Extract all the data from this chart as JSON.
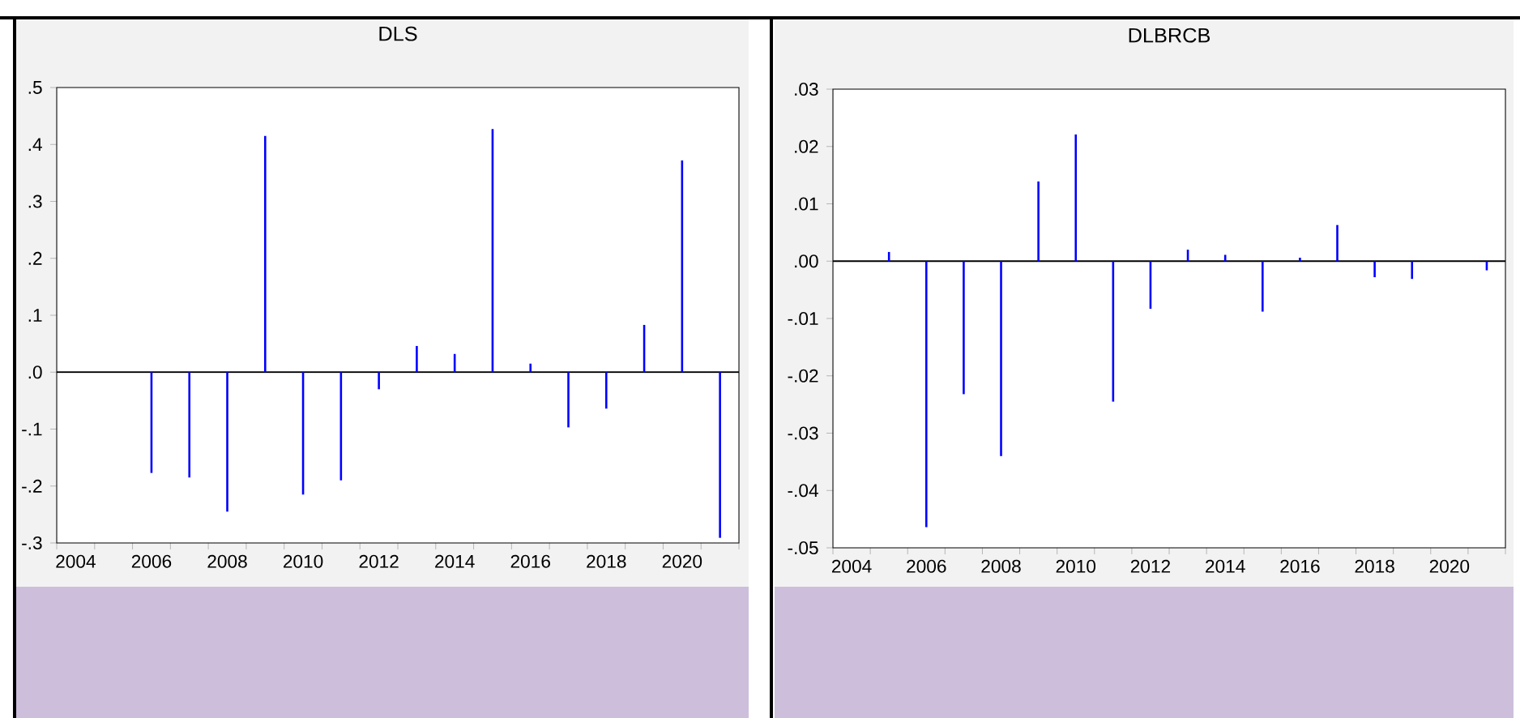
{
  "chart_data": [
    {
      "type": "bar",
      "title": "DLS",
      "color": "#0000ff",
      "categories": [
        "2004",
        null,
        "2006",
        null,
        "2008",
        null,
        "2010",
        null,
        "2012",
        null,
        "2014",
        null,
        "2016",
        null,
        "2018",
        null,
        "2020",
        null
      ],
      "values": [
        null,
        null,
        -0.177,
        -0.185,
        -0.245,
        0.415,
        -0.215,
        -0.19,
        -0.03,
        0.046,
        0.032,
        0.427,
        0.015,
        -0.097,
        -0.064,
        0.083,
        0.372,
        -0.291
      ],
      "ylim": [
        -0.3,
        0.5
      ],
      "yticks": [
        {
          "value": -0.3,
          "label": "-.3"
        },
        {
          "value": -0.2,
          "label": "-.2"
        },
        {
          "value": -0.1,
          "label": "-.1"
        },
        {
          "value": 0,
          "label": ".0"
        },
        {
          "value": 0.1,
          "label": ".1"
        },
        {
          "value": 0.2,
          "label": ".2"
        },
        {
          "value": 0.3,
          "label": ".3"
        },
        {
          "value": 0.4,
          "label": ".4"
        },
        {
          "value": 0.5,
          "label": ".5"
        }
      ],
      "ref_lines": [
        {
          "axis": "y",
          "value": 0
        }
      ]
    },
    {
      "type": "bar",
      "title": "DLBRCB",
      "color": "#0000ff",
      "categories": [
        "2004",
        null,
        "2006",
        null,
        "2008",
        null,
        "2010",
        null,
        "2012",
        null,
        "2014",
        null,
        "2016",
        null,
        "2018",
        null,
        "2020",
        null
      ],
      "values": [
        null,
        0.0016,
        -0.0464,
        -0.0232,
        -0.034,
        0.0139,
        0.0221,
        -0.0245,
        -0.0083,
        0.002,
        0.0011,
        -0.0088,
        0.0006,
        0.0063,
        -0.0028,
        -0.0031,
        null,
        -0.0016
      ],
      "ylim": [
        -0.05,
        0.03
      ],
      "yticks": [
        {
          "value": -0.05,
          "label": "-.05"
        },
        {
          "value": -0.04,
          "label": "-.04"
        },
        {
          "value": -0.03,
          "label": "-.03"
        },
        {
          "value": -0.02,
          "label": "-.02"
        },
        {
          "value": -0.01,
          "label": "-.01"
        },
        {
          "value": 0,
          "label": ".00"
        },
        {
          "value": 0.01,
          "label": ".01"
        },
        {
          "value": 0.02,
          "label": ".02"
        },
        {
          "value": 0.03,
          "label": ".03"
        }
      ],
      "ref_lines": [
        {
          "axis": "y",
          "value": 0
        }
      ]
    }
  ]
}
